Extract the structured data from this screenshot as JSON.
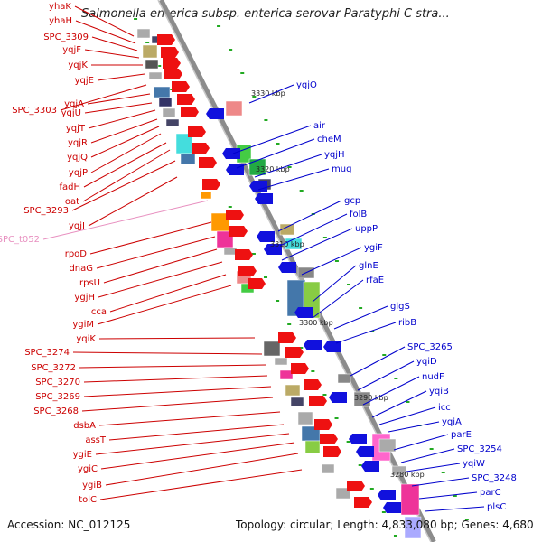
{
  "title": "Salmonella enterica subsp. enterica serovar Paratyphi C stra...",
  "accession": "Accession: NC_012125",
  "topology": "Topology: circular; Length: 4,833,080 bp; Genes: 4,680",
  "kbp_ticks": [
    "3330 kbp",
    "3320 kbp",
    "3310 kbp",
    "3300 kbp",
    "3290 kbp",
    "3280 kbp"
  ],
  "left_genes": [
    "yhaK",
    "yhaH",
    "SPC_3309",
    "yqjF",
    "yqjK",
    "yqjE",
    "SPC_3303",
    "yqjA",
    "yqjU",
    "yqjT",
    "yqjR",
    "yqjQ",
    "yqjP",
    "fadH",
    "oat",
    "SPC_3293",
    "yqjI",
    "SPC_t052",
    "rpoD",
    "dnaG",
    "rpsU",
    "ygjH",
    "cca",
    "ygiM",
    "yqiK",
    "SPC_3274",
    "SPC_3272",
    "SPC_3270",
    "SPC_3269",
    "SPC_3268",
    "dsbA",
    "assT",
    "ygiE",
    "ygiC",
    "ygiB",
    "tolC"
  ],
  "right_genes": [
    "ygjO",
    "air",
    "cheM",
    "yqjH",
    "mug",
    "gcp",
    "folB",
    "uppP",
    "ygiF",
    "glnE",
    "rfaE",
    "glgS",
    "ribB",
    "SPC_3265",
    "yqiD",
    "nudF",
    "yqiB",
    "icc",
    "yqiA",
    "parE",
    "SPC_3254",
    "yqiW",
    "SPC_3248",
    "parC",
    "plsC"
  ],
  "colors": {
    "left_label": "#cc0000",
    "right_label": "#0000cc",
    "trna_label": "#e890c0",
    "backbone": "#888888",
    "tick": "#22aa22"
  }
}
